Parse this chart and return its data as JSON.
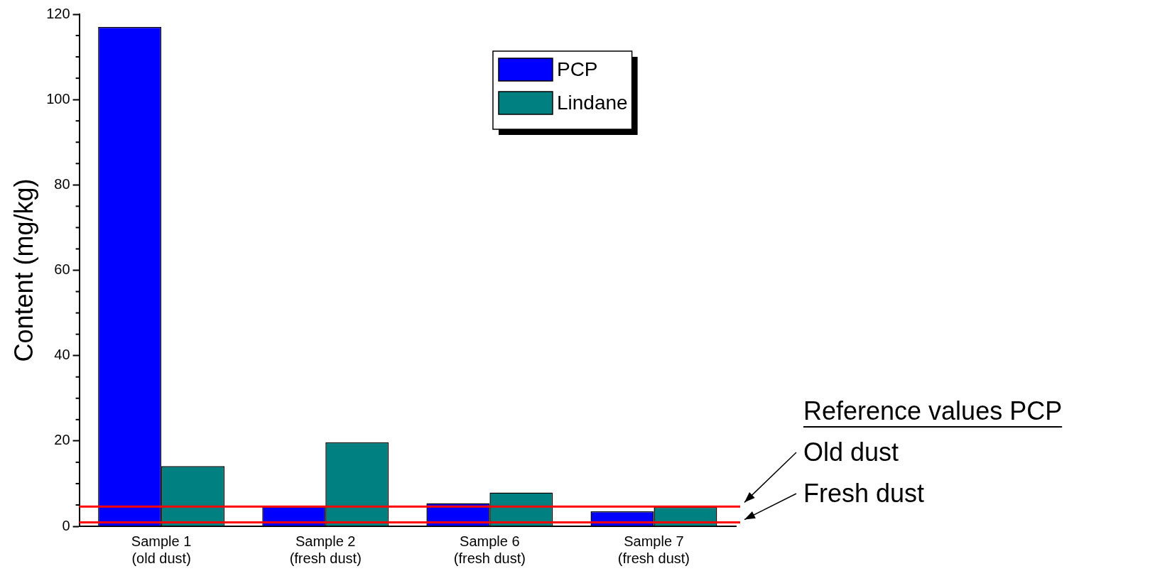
{
  "chart_data": {
    "type": "bar",
    "ylabel": "Content (mg/kg)",
    "categories": [
      "Sample 1\n(old dust)",
      "Sample 2\n(fresh dust)",
      "Sample 6\n(fresh dust)",
      "Sample 7\n(fresh dust)"
    ],
    "series": [
      {
        "name": "PCP",
        "color": "#0000ff",
        "values": [
          117,
          4.6,
          5.4,
          3.5
        ]
      },
      {
        "name": "Lindane",
        "color": "#008080",
        "values": [
          14.1,
          19.7,
          7.9,
          4.5
        ]
      }
    ],
    "ylim": [
      0,
      120
    ],
    "yticks": [
      0,
      20,
      40,
      60,
      80,
      100,
      120
    ],
    "grid": false,
    "legend": "top",
    "ref_lines": [
      {
        "axis": "y",
        "value": 4.6,
        "label": "Old dust",
        "color": "#ff0000"
      },
      {
        "axis": "y",
        "value": 0.9,
        "label": "Fresh dust",
        "color": "#ff0000"
      }
    ],
    "annotations": [
      "Reference values PCP"
    ]
  }
}
